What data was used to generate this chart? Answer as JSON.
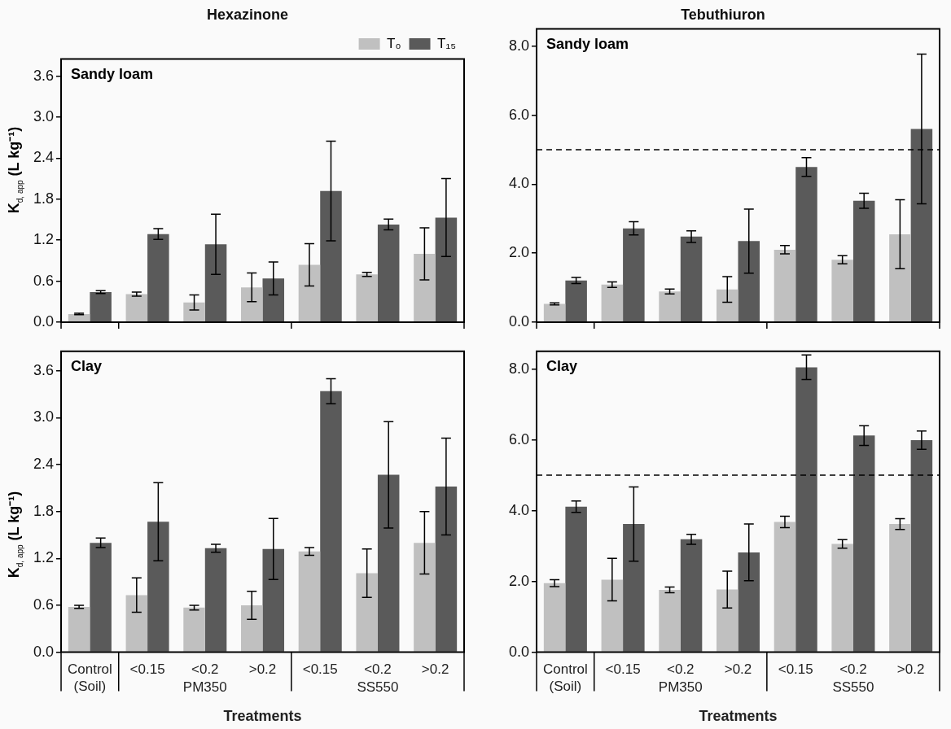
{
  "chart_data": [
    {
      "type": "bar",
      "title": "Hexazinone",
      "ylabel": "K$_{d, app}$ (L kg⁻¹)",
      "annotations": [
        "Sandy loam"
      ],
      "categories": [
        null,
        null,
        null,
        null,
        null,
        null,
        null
      ],
      "series": [
        {
          "name": "T₀",
          "color": "#c0c0c0",
          "values": [
            0.12,
            0.41,
            0.29,
            0.51,
            0.84,
            0.7,
            1.0
          ],
          "errors": [
            0.01,
            0.03,
            0.11,
            0.21,
            0.31,
            0.03,
            0.38
          ]
        },
        {
          "name": "T₁₅",
          "color": "#5a5a5a",
          "values": [
            0.44,
            1.29,
            1.14,
            0.64,
            1.92,
            1.43,
            1.53
          ],
          "errors": [
            0.02,
            0.08,
            0.44,
            0.24,
            0.73,
            0.08,
            0.57
          ]
        }
      ],
      "ylim": [
        0,
        3.85
      ],
      "yticks": [
        {
          "value": 0,
          "label": "0.0"
        },
        0.6,
        1.2,
        1.8,
        2.4,
        {
          "value": 3,
          "label": "3.0"
        },
        3.6
      ],
      "legend": "top right",
      "tick_labels": "y"
    },
    {
      "type": "bar",
      "title": "Tebuthiuron",
      "annotations": [
        "Sandy loam"
      ],
      "categories": [
        null,
        null,
        null,
        null,
        null,
        null,
        null
      ],
      "series": [
        {
          "color": "#c0c0c0",
          "values": [
            0.53,
            1.09,
            0.89,
            0.95,
            2.1,
            1.81,
            2.55
          ],
          "errors": [
            0.03,
            0.08,
            0.07,
            0.37,
            0.12,
            0.12,
            1.0
          ]
        },
        {
          "color": "#5a5a5a",
          "values": [
            1.21,
            2.72,
            2.48,
            2.35,
            4.5,
            3.52,
            5.6
          ],
          "errors": [
            0.09,
            0.19,
            0.17,
            0.93,
            0.27,
            0.22,
            2.17
          ]
        }
      ],
      "ylim": [
        0,
        8.5
      ],
      "yticks": [
        {
          "value": 0,
          "label": "0.0"
        },
        {
          "value": 2,
          "label": "2.0"
        },
        {
          "value": 4,
          "label": "4.0"
        },
        {
          "value": 6,
          "label": "6.0"
        },
        {
          "value": 8,
          "label": "8.0"
        }
      ],
      "ref_lines": [
        {
          "axis": "y",
          "value": 5,
          "line_style": "dashed",
          "color": "#000000"
        }
      ],
      "tick_labels": "y"
    },
    {
      "type": "bar",
      "ylabel": "K$_{d, app}$ (L kg⁻¹)",
      "xlabel": "Treatments",
      "annotations": [
        "Clay",
        "PM350",
        "SS550"
      ],
      "categories": [
        "Control (Soil)",
        "<0.15",
        "<0.2",
        ">0.2",
        "<0.15",
        "<0.2",
        ">0.2"
      ],
      "series": [
        {
          "color": "#c0c0c0",
          "values": [
            0.58,
            0.73,
            0.57,
            0.6,
            1.29,
            1.01,
            1.4
          ],
          "errors": [
            0.02,
            0.22,
            0.03,
            0.18,
            0.05,
            0.31,
            0.4
          ]
        },
        {
          "color": "#5a5a5a",
          "values": [
            1.4,
            1.67,
            1.33,
            1.32,
            3.34,
            2.27,
            2.12
          ],
          "errors": [
            0.06,
            0.5,
            0.05,
            0.39,
            0.16,
            0.68,
            0.62
          ]
        }
      ],
      "ylim": [
        0,
        3.85
      ],
      "yticks": [
        {
          "value": 0,
          "label": "0.0"
        },
        0.6,
        1.2,
        1.8,
        2.4,
        {
          "value": 3,
          "label": "3.0"
        },
        3.6
      ]
    },
    {
      "type": "bar",
      "xlabel": "Treatments",
      "annotations": [
        "Clay",
        "PM350",
        "SS550"
      ],
      "categories": [
        "Control (Soil)",
        "<0.15",
        "<0.2",
        ">0.2",
        "<0.15",
        "<0.2",
        ">0.2"
      ],
      "series": [
        {
          "color": "#c0c0c0",
          "values": [
            1.95,
            2.05,
            1.76,
            1.77,
            3.68,
            3.06,
            3.62
          ],
          "errors": [
            0.1,
            0.6,
            0.08,
            0.52,
            0.16,
            0.12,
            0.15
          ]
        },
        {
          "color": "#5a5a5a",
          "values": [
            4.11,
            3.62,
            3.19,
            2.82,
            8.05,
            6.12,
            5.99
          ],
          "errors": [
            0.16,
            1.05,
            0.14,
            0.8,
            0.35,
            0.28,
            0.26
          ]
        }
      ],
      "ylim": [
        0,
        8.5
      ],
      "yticks": [
        {
          "value": 0,
          "label": "0.0"
        },
        {
          "value": 2,
          "label": "2.0"
        },
        {
          "value": 4,
          "label": "4.0"
        },
        {
          "value": 6,
          "label": "6.0"
        },
        {
          "value": 8,
          "label": "8.0"
        }
      ],
      "ref_lines": [
        {
          "axis": "y",
          "value": 5,
          "line_style": "dashed",
          "color": "#000000"
        }
      ]
    }
  ]
}
